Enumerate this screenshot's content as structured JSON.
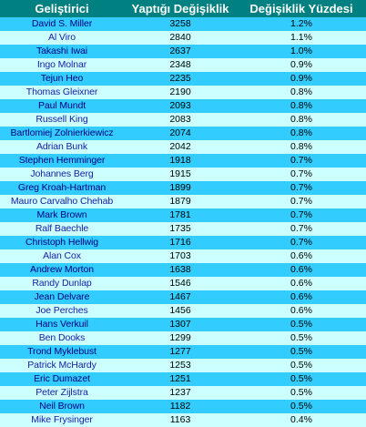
{
  "table": {
    "headers": [
      "Geliştirici",
      "Yaptığı Değişiklik",
      "Değişiklik Yüzdesi"
    ],
    "rows": [
      [
        "David S. Miller",
        "3258",
        "1.2%"
      ],
      [
        "Al Viro",
        "2840",
        "1.1%"
      ],
      [
        "Takashi Iwai",
        "2637",
        "1.0%"
      ],
      [
        "Ingo Molnar",
        "2348",
        "0.9%"
      ],
      [
        "Tejun Heo",
        "2235",
        "0.9%"
      ],
      [
        "Thomas Gleixner",
        "2190",
        "0.8%"
      ],
      [
        "Paul Mundt",
        "2093",
        "0.8%"
      ],
      [
        "Russell King",
        "2083",
        "0.8%"
      ],
      [
        "Bartlomiej Zolnierkiewicz",
        "2074",
        "0.8%"
      ],
      [
        "Adrian Bunk",
        "2042",
        "0.8%"
      ],
      [
        "Stephen Hemminger",
        "1918",
        "0.7%"
      ],
      [
        "Johannes Berg",
        "1915",
        "0.7%"
      ],
      [
        "Greg Kroah-Hartman",
        "1899",
        "0.7%"
      ],
      [
        "Mauro Carvalho Chehab",
        "1879",
        "0.7%"
      ],
      [
        "Mark Brown",
        "1781",
        "0.7%"
      ],
      [
        "Ralf Baechle",
        "1735",
        "0.7%"
      ],
      [
        "Christoph Hellwig",
        "1716",
        "0.7%"
      ],
      [
        "Alan Cox",
        "1703",
        "0.6%"
      ],
      [
        "Andrew Morton",
        "1638",
        "0.6%"
      ],
      [
        "Randy Dunlap",
        "1546",
        "0.6%"
      ],
      [
        "Jean Delvare",
        "1467",
        "0.6%"
      ],
      [
        "Joe Perches",
        "1456",
        "0.6%"
      ],
      [
        "Hans Verkuil",
        "1307",
        "0.5%"
      ],
      [
        "Ben Dooks",
        "1299",
        "0.5%"
      ],
      [
        "Trond Myklebust",
        "1277",
        "0.5%"
      ],
      [
        "Patrick McHardy",
        "1253",
        "0.5%"
      ],
      [
        "Eric Dumazet",
        "1251",
        "0.5%"
      ],
      [
        "Peter Zijlstra",
        "1237",
        "0.5%"
      ],
      [
        "Neil Brown",
        "1182",
        "0.5%"
      ],
      [
        "Mike Frysinger",
        "1163",
        "0.4%"
      ]
    ]
  },
  "colors": {
    "header_bg": "#008080",
    "row_odd_bg": "#33ccff",
    "row_even_bg": "#ccffff"
  }
}
